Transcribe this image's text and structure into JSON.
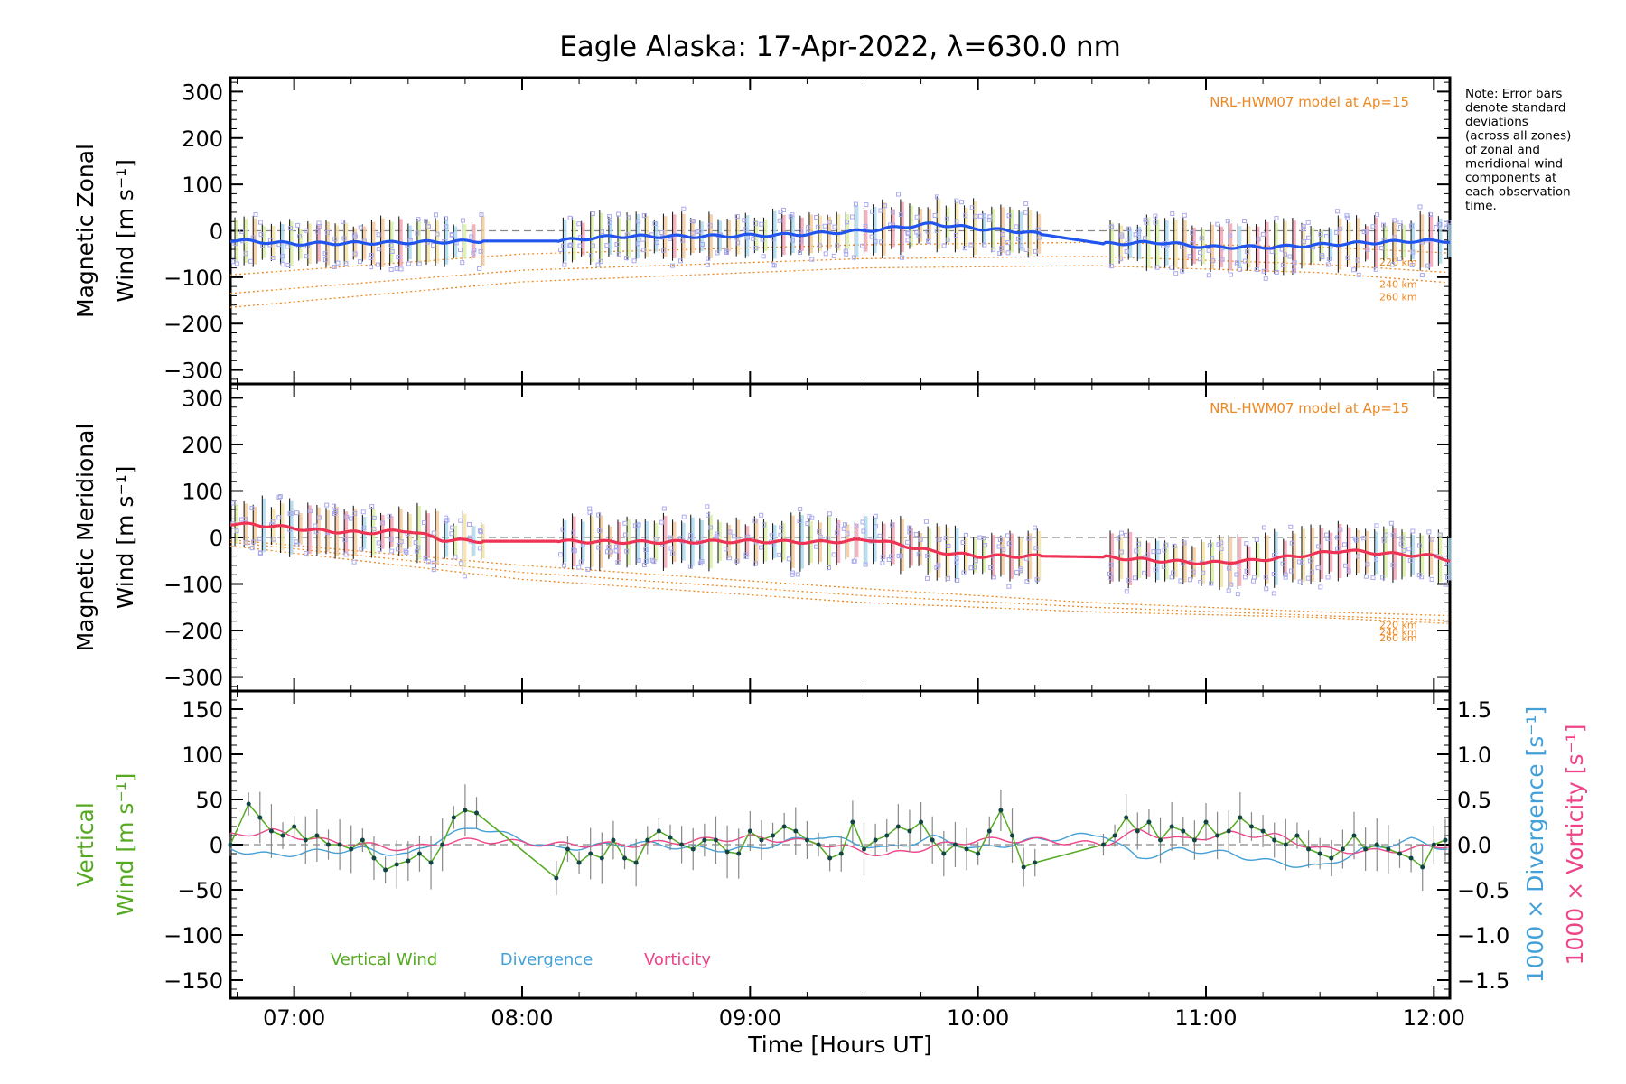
{
  "title": "Eagle Alaska: 17-Apr-2022, λ=630.0 nm",
  "note_lines": [
    "Note: Error bars",
    "denote standard",
    "deviations",
    "(across all zones)",
    "of zonal and",
    "meridional wind",
    "components at",
    "each observation",
    "time."
  ],
  "model_label": "NRL-HWM07 model at Ap=15",
  "model_altitudes": [
    "220 km",
    "240 km",
    "260 km"
  ],
  "colors": {
    "zonal": "#2255ee",
    "meridional": "#ee3355",
    "vertical": "#55aa22",
    "divergence": "#44a0d8",
    "vorticity": "#ee4488",
    "model": "#ee8822",
    "scatter": "#aaaaee",
    "errbar": "#222222"
  },
  "chart_data": [
    {
      "type": "line",
      "title": "Eagle Alaska: 17-Apr-2022, λ=630.0 nm",
      "panel": "zonal",
      "ylabel": [
        "Magnetic Zonal",
        "Wind [m s⁻¹]"
      ],
      "ylim": [
        -330,
        330
      ],
      "yticks": [
        "300",
        "200",
        "100",
        "0",
        "−100",
        "−200",
        "−300"
      ],
      "ytick_values": [
        300,
        200,
        100,
        0,
        -100,
        -200,
        -300
      ],
      "xlim": [
        6.72,
        12.07
      ],
      "x": [
        6.72,
        7.0,
        7.5,
        7.82,
        8.15,
        8.4,
        8.8,
        9.2,
        9.5,
        9.8,
        10.0,
        10.2,
        10.55,
        10.8,
        11.0,
        11.3,
        11.6,
        11.9,
        12.07
      ],
      "series": [
        {
          "values": [
            -20,
            -28,
            -25,
            -22,
            -22,
            -12,
            -12,
            -8,
            0,
            15,
            5,
            -2,
            -28,
            -25,
            -35,
            -35,
            -28,
            -22,
            -22
          ]
        }
      ],
      "model_series": [
        {
          "name": "220 km",
          "x": [
            6.72,
            8.0,
            9.5,
            10.5,
            11.5,
            12.07
          ],
          "values": [
            -95,
            -50,
            -30,
            -25,
            -35,
            -48
          ]
        },
        {
          "name": "240 km",
          "x": [
            6.72,
            8.0,
            9.5,
            10.5,
            11.5,
            12.07
          ],
          "values": [
            -135,
            -85,
            -60,
            -55,
            -72,
            -90
          ]
        },
        {
          "name": "260 km",
          "x": [
            6.72,
            8.0,
            9.5,
            10.5,
            11.5,
            12.07
          ],
          "values": [
            -165,
            -110,
            -80,
            -75,
            -90,
            -112
          ]
        }
      ],
      "gaps": [
        [
          7.82,
          8.15
        ],
        [
          10.27,
          10.55
        ]
      ]
    },
    {
      "type": "line",
      "panel": "meridional",
      "ylabel": [
        "Magnetic Meridional",
        "Wind [m s⁻¹]"
      ],
      "ylim": [
        -330,
        330
      ],
      "yticks": [
        "300",
        "200",
        "100",
        "0",
        "−100",
        "−200",
        "−300"
      ],
      "ytick_values": [
        300,
        200,
        100,
        0,
        -100,
        -200,
        -300
      ],
      "xlim": [
        6.72,
        12.07
      ],
      "x": [
        6.72,
        6.9,
        7.1,
        7.3,
        7.5,
        7.65,
        7.82,
        8.15,
        8.5,
        9.0,
        9.3,
        9.55,
        9.8,
        10.0,
        10.25,
        10.55,
        10.8,
        11.0,
        11.2,
        11.4,
        11.6,
        11.8,
        12.0,
        12.07
      ],
      "series": [
        {
          "values": [
            30,
            25,
            15,
            10,
            15,
            -5,
            -8,
            -8,
            -10,
            -8,
            -10,
            -5,
            -30,
            -40,
            -40,
            -42,
            -50,
            -55,
            -50,
            -40,
            -28,
            -35,
            -40,
            -48
          ]
        }
      ],
      "model_series": [
        {
          "name": "220 km",
          "x": [
            6.72,
            8.0,
            9.5,
            10.5,
            11.5,
            12.07
          ],
          "values": [
            -5,
            -60,
            -110,
            -140,
            -160,
            -168
          ]
        },
        {
          "name": "240 km",
          "x": [
            6.72,
            8.0,
            9.5,
            10.5,
            11.5,
            12.07
          ],
          "values": [
            -10,
            -75,
            -125,
            -150,
            -168,
            -178
          ]
        },
        {
          "name": "260 km",
          "x": [
            6.72,
            8.0,
            9.5,
            10.5,
            11.5,
            12.07
          ],
          "values": [
            -18,
            -90,
            -140,
            -160,
            -172,
            -185
          ]
        }
      ],
      "gaps": [
        [
          7.82,
          8.15
        ],
        [
          10.27,
          10.55
        ]
      ]
    },
    {
      "type": "line",
      "panel": "vertical",
      "xlabel": "Time [Hours UT]",
      "xticks": [
        "07:00",
        "08:00",
        "09:00",
        "10:00",
        "11:00",
        "12:00"
      ],
      "xtick_values": [
        7,
        8,
        9,
        10,
        11,
        12
      ],
      "xlim": [
        6.72,
        12.07
      ],
      "ylabel": [
        "Vertical",
        "Wind [m s⁻¹]"
      ],
      "ylim": [
        -170,
        170
      ],
      "yticks": [
        "150",
        "100",
        "50",
        "0",
        "−50",
        "−100",
        "−150"
      ],
      "ytick_values": [
        150,
        100,
        50,
        0,
        -50,
        -100,
        -150
      ],
      "y2label_divergence": "1000 × Divergence [s⁻¹]",
      "y2label_vorticity": "1000 × Vorticity [s⁻¹]",
      "y2lim": [
        -1.7,
        1.7
      ],
      "y2ticks": [
        "1.5",
        "1.0",
        "0.5",
        "0.0",
        "−0.5",
        "−1.0",
        "−1.5"
      ],
      "y2tick_values": [
        1.5,
        1.0,
        0.5,
        0.0,
        -0.5,
        -1.0,
        -1.5
      ],
      "legend": [
        "Vertical Wind",
        "Divergence",
        "Vorticity"
      ],
      "series": [
        {
          "name": "Vertical Wind",
          "x": [
            6.72,
            6.8,
            6.85,
            6.9,
            6.95,
            7.0,
            7.05,
            7.1,
            7.15,
            7.2,
            7.25,
            7.3,
            7.35,
            7.4,
            7.45,
            7.5,
            7.55,
            7.6,
            7.65,
            7.7,
            7.75,
            7.8,
            8.15,
            8.2,
            8.25,
            8.3,
            8.35,
            8.4,
            8.45,
            8.5,
            8.55,
            8.6,
            8.65,
            8.7,
            8.75,
            8.8,
            8.85,
            8.9,
            8.95,
            9.0,
            9.05,
            9.1,
            9.15,
            9.2,
            9.25,
            9.3,
            9.35,
            9.4,
            9.45,
            9.5,
            9.55,
            9.6,
            9.65,
            9.7,
            9.75,
            9.8,
            9.85,
            9.9,
            9.95,
            10.0,
            10.05,
            10.1,
            10.15,
            10.2,
            10.25,
            10.55,
            10.6,
            10.65,
            10.7,
            10.75,
            10.8,
            10.85,
            10.9,
            10.95,
            11.0,
            11.05,
            11.1,
            11.15,
            11.2,
            11.25,
            11.3,
            11.35,
            11.4,
            11.45,
            11.5,
            11.55,
            11.6,
            11.65,
            11.7,
            11.75,
            11.8,
            11.85,
            11.9,
            11.95,
            12.0,
            12.05
          ],
          "values": [
            0,
            45,
            30,
            15,
            10,
            20,
            5,
            10,
            0,
            0,
            -5,
            5,
            -15,
            -28,
            -22,
            -18,
            -10,
            -20,
            0,
            30,
            38,
            35,
            -37,
            -5,
            -20,
            -10,
            -15,
            5,
            -15,
            -20,
            5,
            15,
            8,
            0,
            -5,
            5,
            5,
            -8,
            -10,
            15,
            5,
            10,
            20,
            15,
            5,
            0,
            -15,
            -10,
            25,
            -5,
            5,
            10,
            20,
            15,
            25,
            5,
            -10,
            0,
            -5,
            -10,
            15,
            38,
            10,
            -25,
            -20,
            0,
            10,
            30,
            15,
            25,
            5,
            20,
            15,
            5,
            25,
            10,
            15,
            30,
            20,
            15,
            5,
            0,
            10,
            -5,
            -10,
            -15,
            -5,
            10,
            -5,
            0,
            -5,
            -10,
            -15,
            -25,
            0,
            5
          ],
          "err": 20
        },
        {
          "name": "Divergence",
          "x": [
            6.72,
            6.9,
            7.1,
            7.3,
            7.5,
            7.65,
            7.8,
            8.15,
            8.5,
            8.8,
            9.0,
            9.3,
            9.6,
            9.8,
            10.0,
            10.25,
            10.55,
            10.7,
            10.9,
            11.1,
            11.3,
            11.5,
            11.7,
            11.9,
            12.07
          ],
          "values": [
            -0.05,
            -0.12,
            -0.08,
            -0.05,
            -0.12,
            0.08,
            0.2,
            -0.05,
            0.02,
            -0.05,
            -0.05,
            0.1,
            -0.05,
            0.08,
            -0.05,
            0.05,
            0.12,
            -0.15,
            -0.05,
            -0.1,
            -0.2,
            -0.25,
            -0.05,
            0.05,
            -0.05
          ]
        },
        {
          "name": "Vorticity",
          "x": [
            6.72,
            6.9,
            7.1,
            7.3,
            7.5,
            7.65,
            7.8,
            8.15,
            8.5,
            8.8,
            9.0,
            9.3,
            9.6,
            9.8,
            10.0,
            10.25,
            10.55,
            10.7,
            10.9,
            11.1,
            11.3,
            11.5,
            11.7,
            11.9,
            12.07
          ],
          "values": [
            0.1,
            0.15,
            0.05,
            0.0,
            -0.05,
            0.02,
            0.05,
            0.0,
            0.0,
            0.05,
            0.08,
            0.02,
            -0.12,
            -0.02,
            0.05,
            0.05,
            0.0,
            0.15,
            0.05,
            0.12,
            0.1,
            -0.05,
            -0.08,
            -0.05,
            0.0
          ]
        }
      ]
    }
  ]
}
